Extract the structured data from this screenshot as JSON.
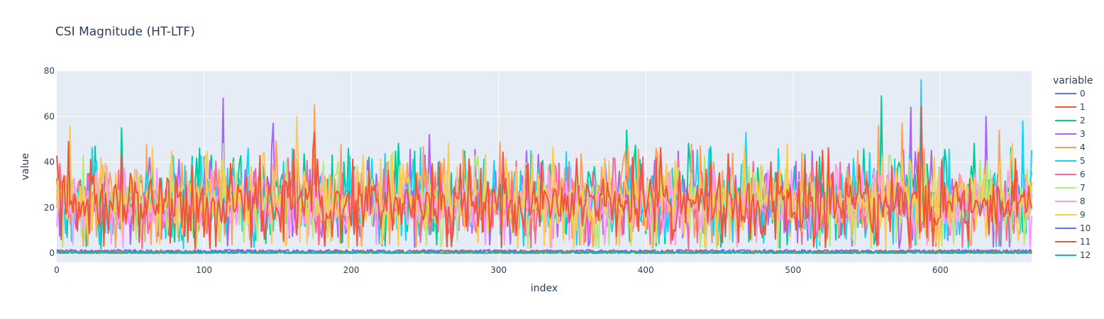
{
  "chart_data": {
    "type": "line",
    "title": "CSI Magnitude (HT-LTF)",
    "xlabel": "index",
    "ylabel": "value",
    "xlim": [
      0,
      662
    ],
    "ylim": [
      -4,
      80
    ],
    "xticks": [
      0,
      100,
      200,
      300,
      400,
      500,
      600
    ],
    "yticks": [
      0,
      20,
      40,
      60,
      80
    ],
    "grid": true,
    "background": "#e5ecf6",
    "legend": {
      "title": "variable",
      "placement": "right"
    },
    "series": [
      {
        "name": "0",
        "color": "#636efa",
        "role": "flat",
        "level": 1.2
      },
      {
        "name": "1",
        "color": "#ef553b",
        "role": "flat",
        "level": 0.9
      },
      {
        "name": "2",
        "color": "#00cc96",
        "role": "noisy",
        "mean": 24,
        "spread": 9,
        "spikes": [
          [
            44,
            55
          ],
          [
            387,
            54
          ],
          [
            560,
            69
          ],
          [
            587,
            70
          ]
        ]
      },
      {
        "name": "3",
        "color": "#ab63fa",
        "role": "noisy",
        "mean": 23,
        "spread": 9,
        "spikes": [
          [
            113,
            68
          ],
          [
            147,
            57
          ],
          [
            253,
            52
          ],
          [
            580,
            64
          ],
          [
            631,
            60
          ]
        ]
      },
      {
        "name": "4",
        "color": "#ffa15a",
        "role": "noisy",
        "mean": 25,
        "spread": 9,
        "spikes": [
          [
            175,
            65
          ],
          [
            388,
            47
          ],
          [
            558,
            56
          ],
          [
            574,
            57
          ],
          [
            640,
            54
          ]
        ]
      },
      {
        "name": "5",
        "color": "#19d3f3",
        "role": "noisy",
        "mean": 22,
        "spread": 9,
        "spikes": [
          [
            468,
            53
          ],
          [
            587,
            76
          ],
          [
            656,
            58
          ]
        ]
      },
      {
        "name": "6",
        "color": "#ff6692",
        "role": "noisy",
        "mean": 21,
        "spread": 8,
        "spikes": [
          [
            113,
            45
          ]
        ]
      },
      {
        "name": "7",
        "color": "#b6e880",
        "role": "noisy",
        "mean": 22,
        "spread": 8,
        "spikes": [
          [
            113,
            48
          ]
        ]
      },
      {
        "name": "8",
        "color": "#ff97ff",
        "role": "noisy",
        "mean": 20,
        "spread": 7,
        "spikes": []
      },
      {
        "name": "9",
        "color": "#fecb52",
        "role": "noisy",
        "mean": 24,
        "spread": 9,
        "spikes": [
          [
            9,
            56
          ],
          [
            163,
            60
          ]
        ]
      },
      {
        "name": "10",
        "color": "#636efa",
        "role": "flat",
        "level": 0.6
      },
      {
        "name": "11",
        "color": "#ef553b",
        "role": "noisy",
        "mean": 22,
        "spread": 9,
        "spikes": [
          [
            8,
            49
          ],
          [
            175,
            53
          ],
          [
            587,
            64
          ]
        ]
      },
      {
        "name": "12",
        "color": "#00cc96",
        "role": "flat",
        "level": 0.3
      }
    ]
  }
}
